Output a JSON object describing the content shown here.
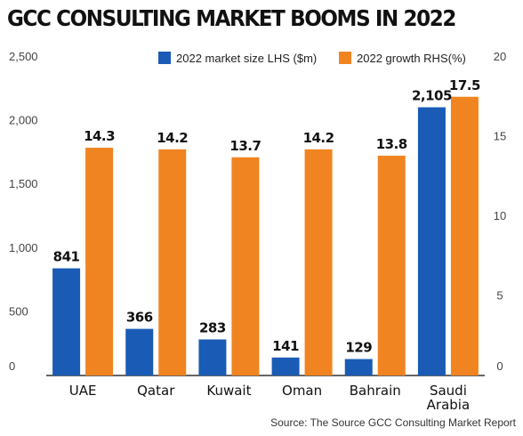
{
  "title": "GCC CONSULTING MARKET BOOMS IN 2022",
  "source": "Source: The Source GCC Consulting Market Report",
  "colors": {
    "blue": "#1a5bb5",
    "orange": "#f08421",
    "axis": "#333333",
    "text": "#111111"
  },
  "chart_data": {
    "type": "bar",
    "title": "GCC CONSULTING MARKET BOOMS IN 2022",
    "categories": [
      "UAE",
      "Qatar",
      "Kuwait",
      "Oman",
      "Bahrain",
      "Saudi Arabia"
    ],
    "category_lines": [
      [
        "UAE"
      ],
      [
        "Qatar"
      ],
      [
        "Kuwait"
      ],
      [
        "Oman"
      ],
      [
        "Bahrain"
      ],
      [
        "Saudi",
        "Arabia"
      ]
    ],
    "series": [
      {
        "name": "2022 market size LHS ($m)",
        "axis": "left",
        "color": "#1a5bb5",
        "values": [
          841,
          366,
          283,
          141,
          129,
          2105
        ],
        "labels": [
          "841",
          "366",
          "283",
          "141",
          "129",
          "2,105"
        ]
      },
      {
        "name": "2022 growth RHS(%)",
        "axis": "right",
        "color": "#f08421",
        "values": [
          14.3,
          14.2,
          13.7,
          14.2,
          13.8,
          17.5
        ],
        "labels": [
          "14.3",
          "14.2",
          "13.7",
          "14.2",
          "13.8",
          "17.5"
        ]
      }
    ],
    "y_left": {
      "ylim": [
        0,
        2500
      ],
      "ticks": [
        0,
        500,
        1000,
        1500,
        2000,
        2500
      ],
      "tick_labels": [
        "0",
        "500",
        "1,000",
        "1,500",
        "2,000",
        "2,500"
      ]
    },
    "y_right": {
      "ylim": [
        0,
        20
      ],
      "ticks": [
        0,
        5,
        10,
        15,
        20
      ],
      "tick_labels": [
        "0",
        "5",
        "10",
        "15",
        "20"
      ]
    },
    "legend": "top-right",
    "grid": false
  }
}
